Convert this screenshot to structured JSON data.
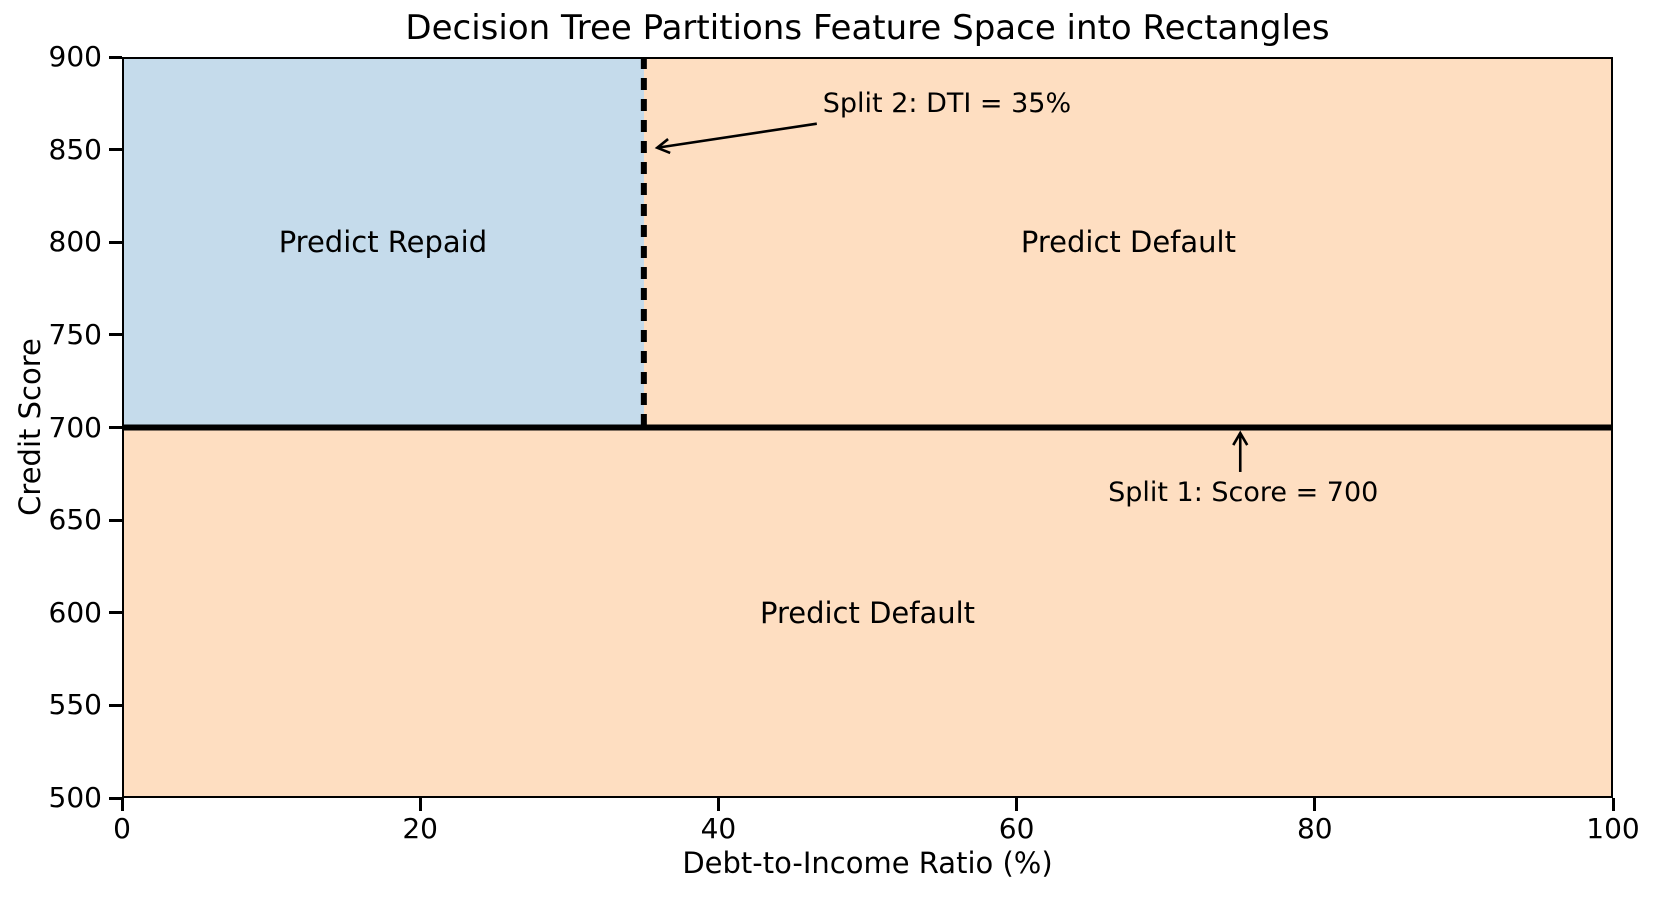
{
  "chart_data": {
    "type": "area",
    "variant": "decision-tree-partition-regions",
    "title": "Decision Tree Partitions Feature Space into Rectangles",
    "xlabel": "Debt-to-Income Ratio (%)",
    "ylabel": "Credit Score",
    "xlim": [
      0,
      100
    ],
    "ylim": [
      500,
      900
    ],
    "x_ticks": [
      0,
      20,
      40,
      60,
      80,
      100
    ],
    "y_ticks": [
      500,
      550,
      600,
      650,
      700,
      750,
      800,
      850,
      900
    ],
    "grid": false,
    "colors": {
      "repaid": "#c5dbeb",
      "default": "#fedec1",
      "line": "#000000"
    },
    "regions": [
      {
        "name": "predict-repaid",
        "label": "Predict Repaid",
        "x": [
          0,
          35
        ],
        "y": [
          700,
          900
        ],
        "fill": "repaid",
        "label_at": [
          17.5,
          800
        ]
      },
      {
        "name": "predict-default-upper",
        "label": "Predict Default",
        "x": [
          35,
          100
        ],
        "y": [
          700,
          900
        ],
        "fill": "default",
        "label_at": [
          67.5,
          800
        ]
      },
      {
        "name": "predict-default-lower",
        "label": "Predict Default",
        "x": [
          0,
          100
        ],
        "y": [
          500,
          700
        ],
        "fill": "default",
        "label_at": [
          50,
          600
        ]
      }
    ],
    "splits": [
      {
        "name": "split-1",
        "axis": "y",
        "value": 700,
        "span": [
          0,
          100
        ],
        "style": "solid",
        "width": 6
      },
      {
        "name": "split-2",
        "axis": "x",
        "value": 35,
        "span": [
          700,
          900
        ],
        "style": "dashed",
        "width": 6
      }
    ],
    "annotations": [
      {
        "name": "split-2-callout",
        "text": "Split 2: DTI = 35%",
        "text_at": [
          47,
          874.5
        ],
        "align": "left",
        "arrow_from": [
          46.6,
          864
        ],
        "arrow_to": [
          35.9,
          851
        ]
      },
      {
        "name": "split-1-callout",
        "text": "Split 1: Score = 700",
        "text_at": [
          75.2,
          664.5
        ],
        "align": "center",
        "arrow_from": [
          75.0,
          676
        ],
        "arrow_to": [
          75.0,
          697
        ]
      }
    ]
  }
}
